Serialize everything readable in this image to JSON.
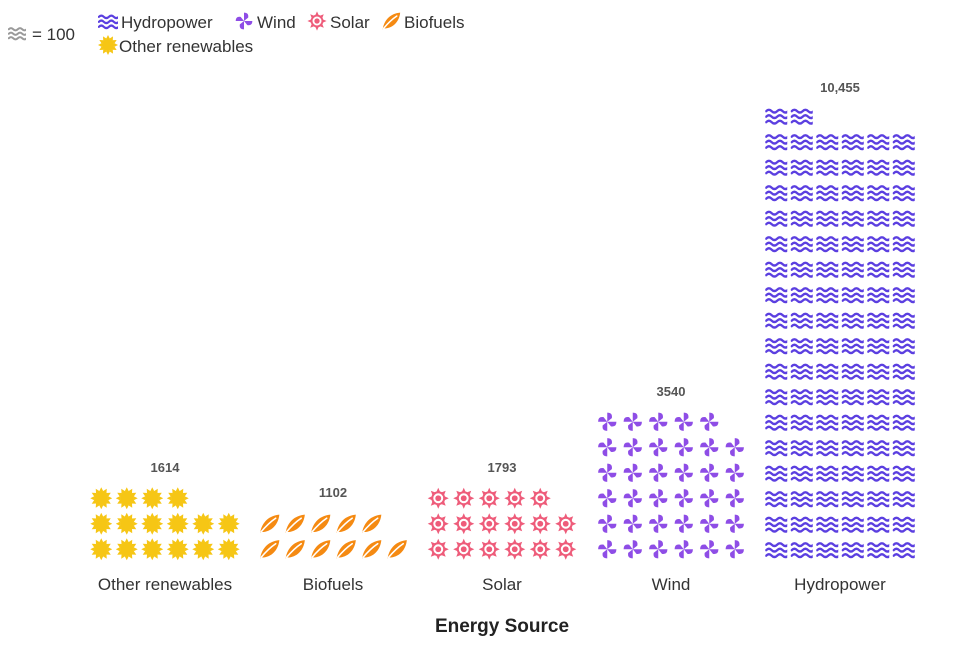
{
  "chart_data": {
    "type": "pictograph",
    "unit": {
      "label": "= 100",
      "value": 100,
      "icon": "waves-icon"
    },
    "legend": [
      {
        "name": "Hydropower",
        "icon": "waves-icon",
        "color": "#5b3fe0"
      },
      {
        "name": "Wind",
        "icon": "pinwheel-icon",
        "color": "#8e4de6"
      },
      {
        "name": "Solar",
        "icon": "sun-gear-icon",
        "color": "#ee5c7a"
      },
      {
        "name": "Biofuels",
        "icon": "leaf-icon",
        "color": "#f58a12"
      },
      {
        "name": "Other renewables",
        "icon": "sun-icon",
        "color": "#f6c615"
      }
    ],
    "categories": [
      "Other renewables",
      "Biofuels",
      "Solar",
      "Wind",
      "Hydropower"
    ],
    "values": [
      1614,
      1102,
      1793,
      3540,
      10455
    ],
    "value_labels": [
      "1614",
      "1102",
      "1793",
      "3540",
      "10,455"
    ],
    "icons_per_row": 6,
    "xlabel": "Energy Source",
    "legend_position": "top-left"
  }
}
